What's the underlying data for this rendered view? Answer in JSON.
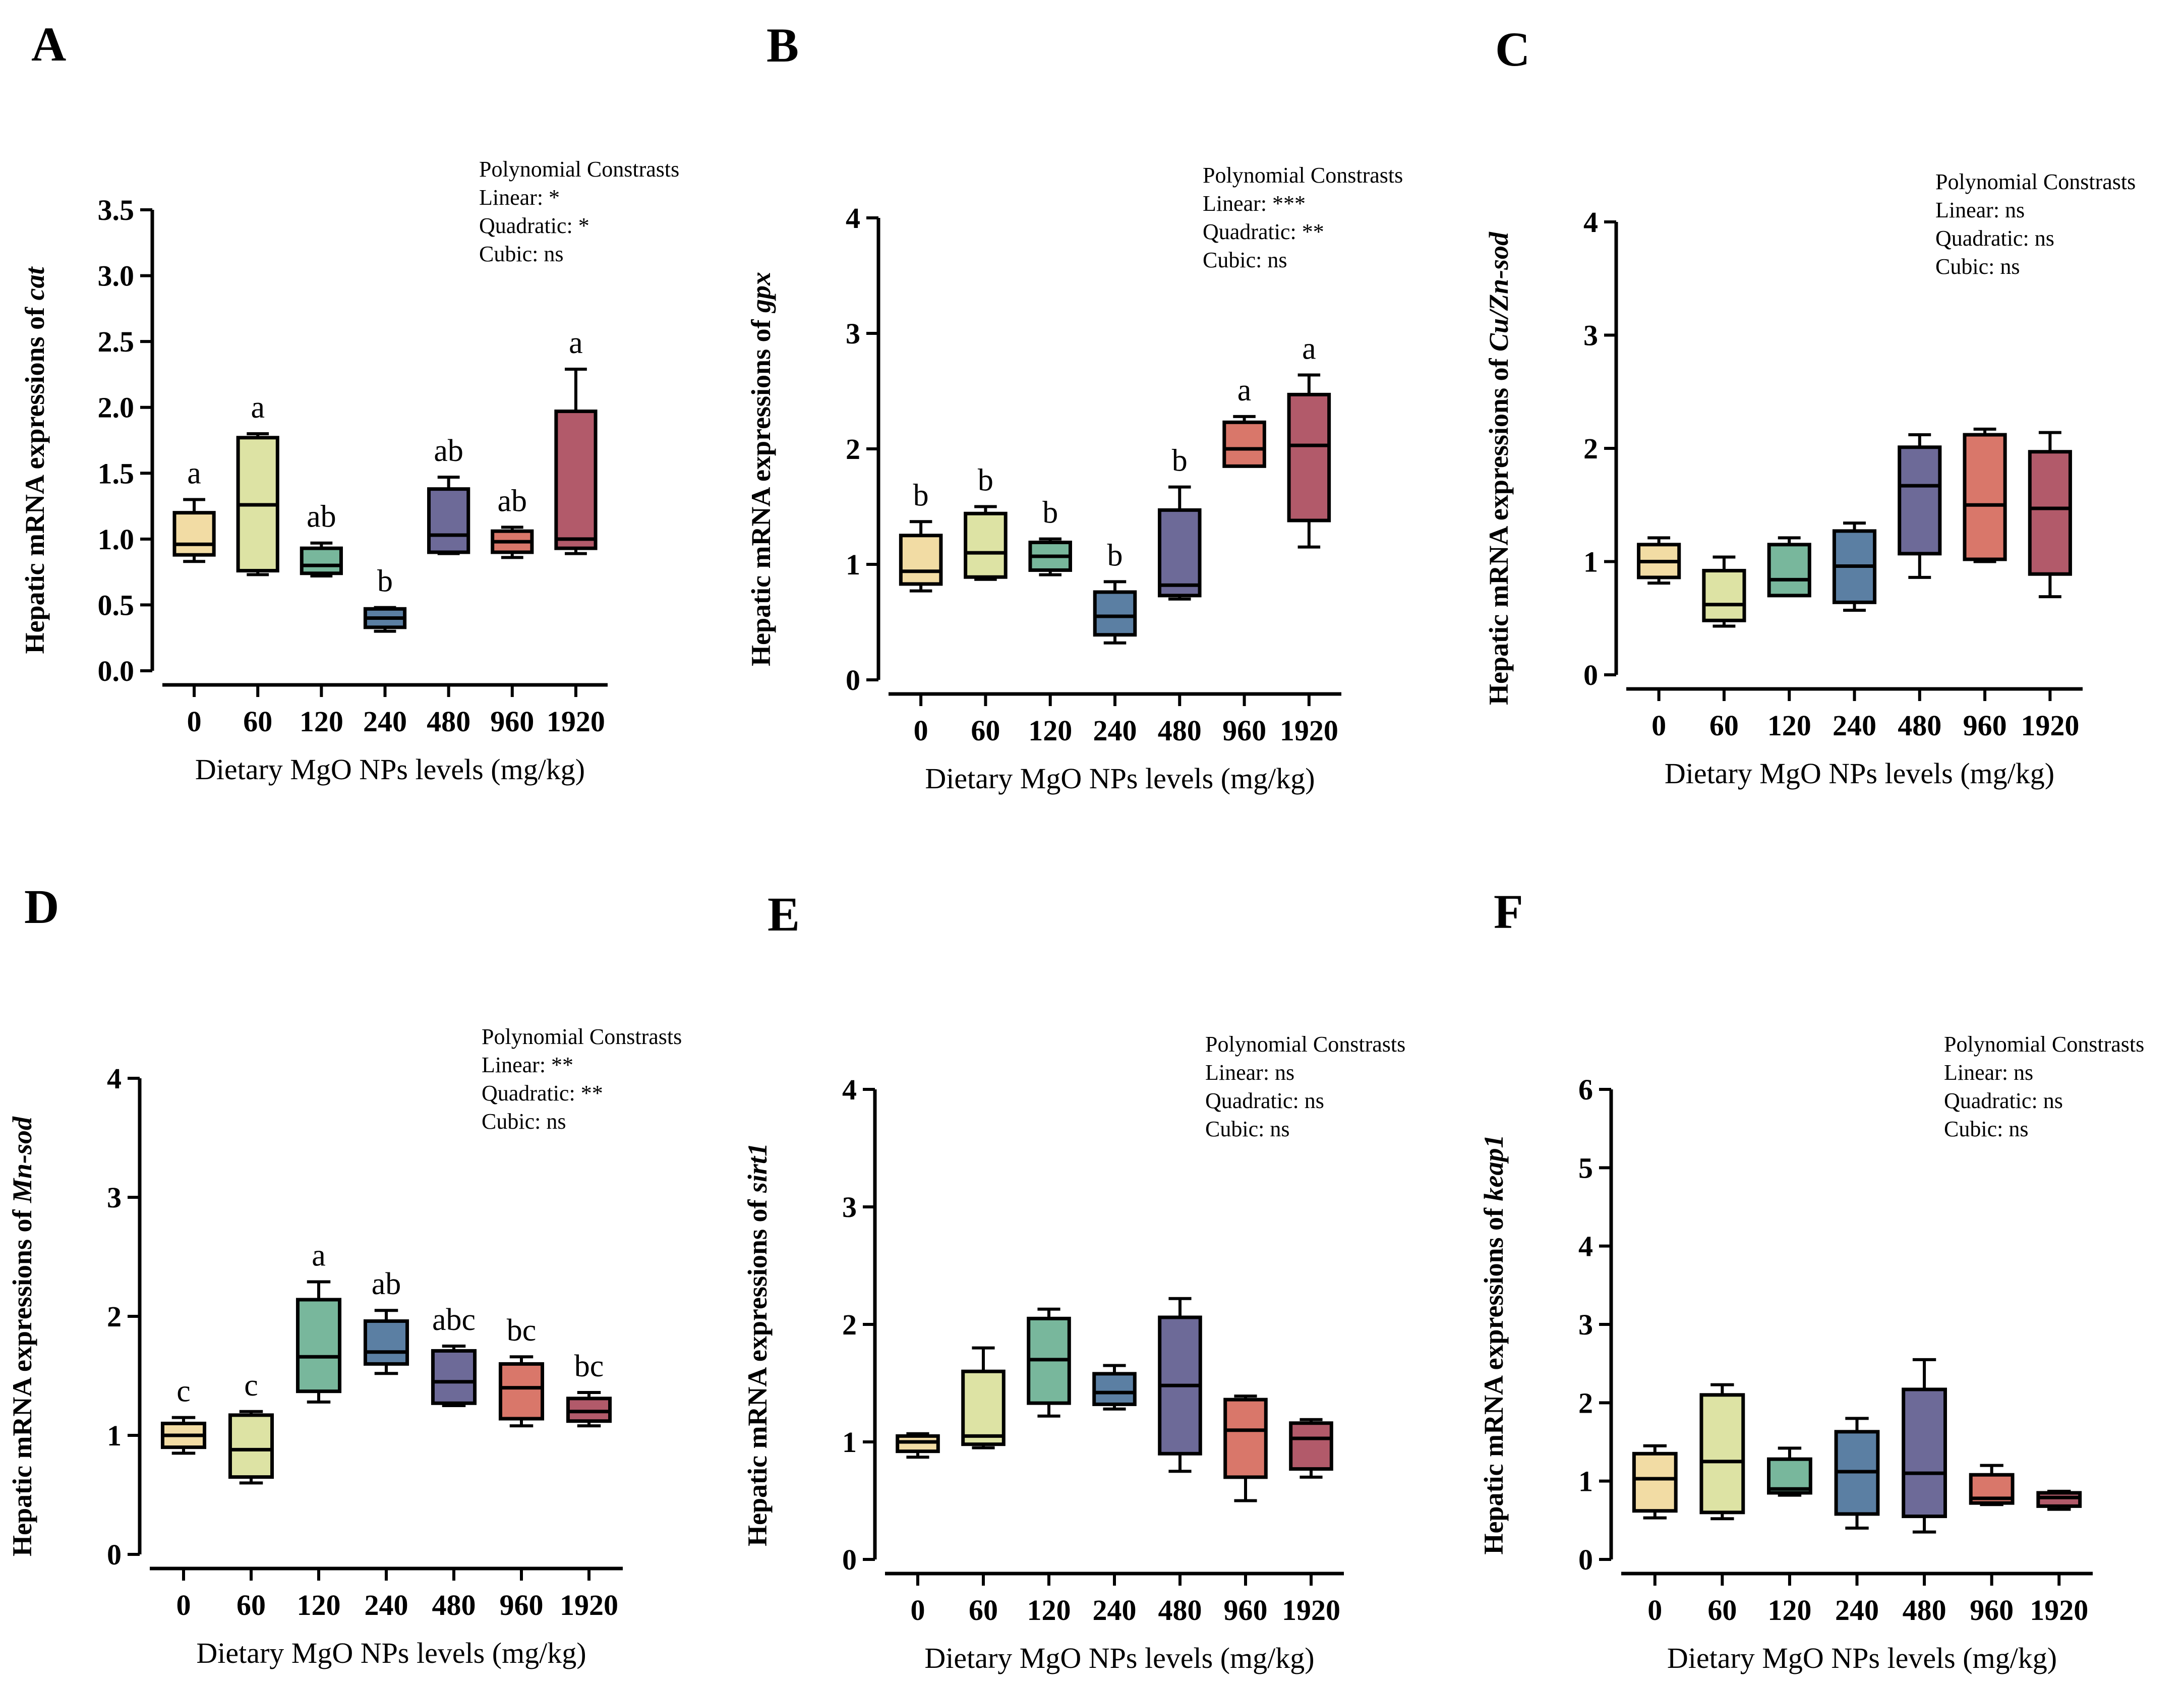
{
  "figure": {
    "xlabel": "Dietary MgO NPs levels (mg/kg)",
    "ylabel_prefix": "Hepatic mRNA expressions of ",
    "contrast_title": "Polynomial Constrasts",
    "box_colors": [
      "#f2dca4",
      "#dde3a4",
      "#78b79c",
      "#5b7fa3",
      "#6d6a98",
      "#d9776a",
      "#b25a6a"
    ]
  },
  "chart_data": [
    {
      "type": "box",
      "panel": "A",
      "gene": "cat",
      "categories": [
        "0",
        "60",
        "120",
        "240",
        "480",
        "960",
        "1920"
      ],
      "ylim": [
        0,
        3.5
      ],
      "yticks": [
        "0.0",
        "0.5",
        "1.0",
        "1.5",
        "2.0",
        "2.5",
        "3.0",
        "3.5"
      ],
      "ytick_values": [
        0,
        0.5,
        1.0,
        1.5,
        2.0,
        2.5,
        3.0,
        3.5
      ],
      "boxes": [
        {
          "min": 0.83,
          "q1": 0.88,
          "median": 0.96,
          "q3": 1.2,
          "max": 1.3
        },
        {
          "min": 0.73,
          "q1": 0.76,
          "median": 1.26,
          "q3": 1.77,
          "max": 1.8
        },
        {
          "min": 0.72,
          "q1": 0.74,
          "median": 0.8,
          "q3": 0.93,
          "max": 0.97
        },
        {
          "min": 0.3,
          "q1": 0.33,
          "median": 0.4,
          "q3": 0.47,
          "max": 0.48
        },
        {
          "min": 0.89,
          "q1": 0.9,
          "median": 1.03,
          "q3": 1.38,
          "max": 1.47
        },
        {
          "min": 0.86,
          "q1": 0.9,
          "median": 0.98,
          "q3": 1.06,
          "max": 1.09
        },
        {
          "min": 0.89,
          "q1": 0.93,
          "median": 1.0,
          "q3": 1.97,
          "max": 2.29
        }
      ],
      "letters": [
        "a",
        "a",
        "ab",
        "b",
        "ab",
        "ab",
        "a"
      ],
      "contrasts": [
        "Linear: *",
        "Quadratic: *",
        "Cubic: ns"
      ]
    },
    {
      "type": "box",
      "panel": "B",
      "gene": "gpx",
      "categories": [
        "0",
        "60",
        "120",
        "240",
        "480",
        "960",
        "1920"
      ],
      "ylim": [
        0,
        4
      ],
      "yticks": [
        "0",
        "1",
        "2",
        "3",
        "4"
      ],
      "ytick_values": [
        0,
        1,
        2,
        3,
        4
      ],
      "boxes": [
        {
          "min": 0.77,
          "q1": 0.83,
          "median": 0.94,
          "q3": 1.25,
          "max": 1.37
        },
        {
          "min": 0.87,
          "q1": 0.89,
          "median": 1.1,
          "q3": 1.44,
          "max": 1.5
        },
        {
          "min": 0.91,
          "q1": 0.95,
          "median": 1.07,
          "q3": 1.19,
          "max": 1.22
        },
        {
          "min": 0.32,
          "q1": 0.39,
          "median": 0.55,
          "q3": 0.76,
          "max": 0.85
        },
        {
          "min": 0.7,
          "q1": 0.73,
          "median": 0.82,
          "q3": 1.47,
          "max": 1.67
        },
        {
          "min": 1.85,
          "q1": 1.85,
          "median": 2.0,
          "q3": 2.23,
          "max": 2.28
        },
        {
          "min": 1.15,
          "q1": 1.38,
          "median": 2.03,
          "q3": 2.47,
          "max": 2.64
        }
      ],
      "letters": [
        "b",
        "b",
        "b",
        "b",
        "b",
        "a",
        "a"
      ],
      "contrasts": [
        "Linear: ***",
        "Quadratic: **",
        "Cubic: ns"
      ]
    },
    {
      "type": "box",
      "panel": "C",
      "gene": "Cu/Zn-sod",
      "categories": [
        "0",
        "60",
        "120",
        "240",
        "480",
        "960",
        "1920"
      ],
      "ylim": [
        0,
        4
      ],
      "yticks": [
        "0",
        "1",
        "2",
        "3",
        "4"
      ],
      "ytick_values": [
        0,
        1,
        2,
        3,
        4
      ],
      "boxes": [
        {
          "min": 0.81,
          "q1": 0.86,
          "median": 1.0,
          "q3": 1.15,
          "max": 1.21
        },
        {
          "min": 0.43,
          "q1": 0.48,
          "median": 0.62,
          "q3": 0.92,
          "max": 1.04
        },
        {
          "min": 0.7,
          "q1": 0.7,
          "median": 0.84,
          "q3": 1.15,
          "max": 1.21
        },
        {
          "min": 0.57,
          "q1": 0.64,
          "median": 0.96,
          "q3": 1.27,
          "max": 1.34
        },
        {
          "min": 0.86,
          "q1": 1.07,
          "median": 1.67,
          "q3": 2.01,
          "max": 2.12
        },
        {
          "min": 1.0,
          "q1": 1.02,
          "median": 1.5,
          "q3": 2.12,
          "max": 2.17
        },
        {
          "min": 0.69,
          "q1": 0.89,
          "median": 1.47,
          "q3": 1.97,
          "max": 2.14
        }
      ],
      "letters": [
        "",
        "",
        "",
        "",
        "",
        "",
        ""
      ],
      "contrasts": [
        "Linear: ns",
        "Quadratic: ns",
        "Cubic: ns"
      ]
    },
    {
      "type": "box",
      "panel": "D",
      "gene": "Mn-sod",
      "categories": [
        "0",
        "60",
        "120",
        "240",
        "480",
        "960",
        "1920"
      ],
      "ylim": [
        0,
        4
      ],
      "yticks": [
        "0",
        "1",
        "2",
        "3",
        "4"
      ],
      "ytick_values": [
        0,
        1,
        2,
        3,
        4
      ],
      "boxes": [
        {
          "min": 0.85,
          "q1": 0.9,
          "median": 1.0,
          "q3": 1.1,
          "max": 1.15
        },
        {
          "min": 0.6,
          "q1": 0.65,
          "median": 0.88,
          "q3": 1.17,
          "max": 1.2
        },
        {
          "min": 1.28,
          "q1": 1.37,
          "median": 1.66,
          "q3": 2.14,
          "max": 2.29
        },
        {
          "min": 1.52,
          "q1": 1.6,
          "median": 1.7,
          "q3": 1.96,
          "max": 2.05
        },
        {
          "min": 1.25,
          "q1": 1.27,
          "median": 1.45,
          "q3": 1.71,
          "max": 1.75
        },
        {
          "min": 1.08,
          "q1": 1.14,
          "median": 1.4,
          "q3": 1.6,
          "max": 1.66
        },
        {
          "min": 1.08,
          "q1": 1.12,
          "median": 1.2,
          "q3": 1.31,
          "max": 1.36
        }
      ],
      "letters": [
        "c",
        "c",
        "a",
        "ab",
        "abc",
        "bc",
        "bc"
      ],
      "contrasts": [
        "Linear: **",
        "Quadratic: **",
        "Cubic: ns"
      ]
    },
    {
      "type": "box",
      "panel": "E",
      "gene": "sirt1",
      "categories": [
        "0",
        "60",
        "120",
        "240",
        "480",
        "960",
        "1920"
      ],
      "ylim": [
        0,
        4
      ],
      "yticks": [
        "0",
        "1",
        "2",
        "3",
        "4"
      ],
      "ytick_values": [
        0,
        1,
        2,
        3,
        4
      ],
      "boxes": [
        {
          "min": 0.87,
          "q1": 0.92,
          "median": 1.0,
          "q3": 1.05,
          "max": 1.07
        },
        {
          "min": 0.95,
          "q1": 0.98,
          "median": 1.05,
          "q3": 1.6,
          "max": 1.8
        },
        {
          "min": 1.22,
          "q1": 1.33,
          "median": 1.7,
          "q3": 2.05,
          "max": 2.13
        },
        {
          "min": 1.28,
          "q1": 1.32,
          "median": 1.42,
          "q3": 1.58,
          "max": 1.65
        },
        {
          "min": 0.75,
          "q1": 0.9,
          "median": 1.48,
          "q3": 2.06,
          "max": 2.22
        },
        {
          "min": 0.5,
          "q1": 0.7,
          "median": 1.1,
          "q3": 1.36,
          "max": 1.39
        },
        {
          "min": 0.7,
          "q1": 0.77,
          "median": 1.03,
          "q3": 1.16,
          "max": 1.19
        }
      ],
      "letters": [
        "",
        "",
        "",
        "",
        "",
        "",
        ""
      ],
      "contrasts": [
        "Linear: ns",
        "Quadratic: ns",
        "Cubic: ns"
      ]
    },
    {
      "type": "box",
      "panel": "F",
      "gene": "keap1",
      "categories": [
        "0",
        "60",
        "120",
        "240",
        "480",
        "960",
        "1920"
      ],
      "ylim": [
        0,
        6
      ],
      "yticks": [
        "0",
        "1",
        "2",
        "3",
        "4",
        "5",
        "6"
      ],
      "ytick_values": [
        0,
        1,
        2,
        3,
        4,
        5,
        6
      ],
      "boxes": [
        {
          "min": 0.53,
          "q1": 0.62,
          "median": 1.03,
          "q3": 1.35,
          "max": 1.45
        },
        {
          "min": 0.52,
          "q1": 0.6,
          "median": 1.25,
          "q3": 2.1,
          "max": 2.23
        },
        {
          "min": 0.82,
          "q1": 0.85,
          "median": 0.9,
          "q3": 1.28,
          "max": 1.42
        },
        {
          "min": 0.4,
          "q1": 0.58,
          "median": 1.12,
          "q3": 1.63,
          "max": 1.8
        },
        {
          "min": 0.35,
          "q1": 0.55,
          "median": 1.1,
          "q3": 2.17,
          "max": 2.55
        },
        {
          "min": 0.7,
          "q1": 0.72,
          "median": 0.78,
          "q3": 1.08,
          "max": 1.2
        },
        {
          "min": 0.64,
          "q1": 0.68,
          "median": 0.79,
          "q3": 0.85,
          "max": 0.87
        }
      ],
      "letters": [
        "",
        "",
        "",
        "",
        "",
        "",
        ""
      ],
      "contrasts": [
        "Linear: ns",
        "Quadratic: ns",
        "Cubic: ns"
      ]
    }
  ]
}
